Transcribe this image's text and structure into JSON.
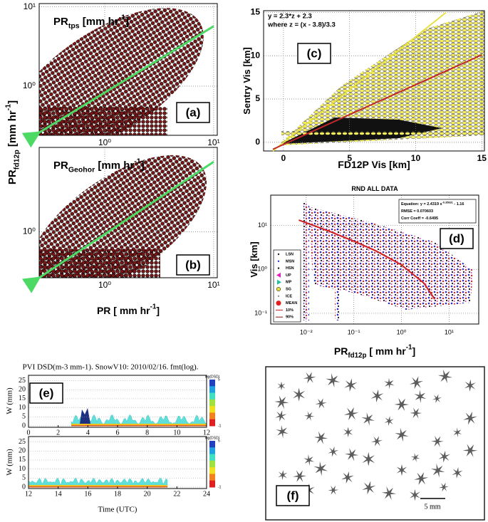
{
  "left_labels": {
    "y_label": [
      {
        "text": "PR"
      },
      {
        "text": "fd12p",
        "pos": "sub"
      },
      {
        "text": " [mm hr"
      },
      {
        "text": "-1",
        "pos": "sup"
      },
      {
        "text": "]"
      }
    ],
    "x_label": [
      {
        "text": "PR [ mm hr"
      },
      {
        "text": "-1",
        "pos": "sup"
      },
      {
        "text": "]"
      }
    ]
  },
  "chart_data": [
    {
      "type": "scatter",
      "panel_label": "(a)",
      "title": [
        {
          "text": "PR"
        },
        {
          "text": "tps",
          "pos": "sub"
        },
        {
          "text": " [mm hr"
        },
        {
          "text": "-1",
          "pos": "sup"
        },
        {
          "text": "]"
        }
      ],
      "log_x": true,
      "log_y": true,
      "grid": true,
      "xlim": [
        0.25,
        10.8
      ],
      "ylim": [
        0.24,
        11
      ],
      "xticks": [
        {
          "value": 1,
          "label": "10⁰"
        },
        {
          "value": 10,
          "label": "10¹"
        }
      ],
      "yticks": [
        {
          "value": 1,
          "label": "10⁰"
        },
        {
          "value": 10,
          "label": "10¹"
        }
      ],
      "series": [
        {
          "color": "#4cd964",
          "x": [
            0.25,
            10
          ],
          "values": [
            0.26,
            5.7
          ]
        }
      ]
    },
    {
      "type": "scatter",
      "panel_label": "(b)",
      "title": [
        {
          "text": "PR"
        },
        {
          "text": "Geohor",
          "pos": "sub"
        },
        {
          "text": " [mm hr"
        },
        {
          "text": "-1",
          "pos": "sup"
        },
        {
          "text": "]"
        }
      ],
      "log_x": true,
      "log_y": true,
      "grid": true,
      "xlim": [
        0.25,
        10.8
      ],
      "ylim": [
        0.27,
        11
      ],
      "xticks": [
        {
          "value": 1,
          "label": "10⁰"
        },
        {
          "value": 10,
          "label": "10¹"
        }
      ],
      "yticks": [
        {
          "value": 1,
          "label": "10⁰"
        }
      ],
      "series": [
        {
          "color": "#4cd964",
          "x": [
            0.25,
            10
          ],
          "values": [
            0.27,
            7.3
          ]
        }
      ]
    },
    {
      "type": "scatter",
      "panel_label": "(c)",
      "x_label": [
        {
          "text": "FD12P Vis [km]"
        }
      ],
      "y_label": [
        {
          "text": "Sentry Vis [km]"
        }
      ],
      "annotations": [
        "y = 2.3*z + 2.3",
        "where z = (x - 3.8)/3.3"
      ],
      "log_x": false,
      "log_y": false,
      "grid": true,
      "xlim": [
        -1.5,
        15.2
      ],
      "ylim": [
        -1,
        15.2
      ],
      "xticks": [
        0,
        5,
        10,
        15
      ],
      "yticks": [
        0,
        5,
        10,
        15
      ],
      "series": [
        {
          "color": "#e8e040",
          "x": [
            -0.8,
            12.3
          ],
          "values": [
            -1,
            15
          ]
        },
        {
          "color": "#c0282a",
          "x": [
            -0.8,
            15
          ],
          "values": [
            -0.8,
            10.1
          ]
        }
      ]
    },
    {
      "type": "scatter",
      "panel_label": "(d)",
      "title": [
        {
          "text": "RND ALL DATA"
        }
      ],
      "x_label": [
        {
          "text": "PR"
        },
        {
          "text": "fd12p",
          "pos": "sub"
        },
        {
          "text": " [ mm hr"
        },
        {
          "text": "-1",
          "pos": "sup"
        },
        {
          "text": "]"
        }
      ],
      "y_label": [
        {
          "text": "Vis [km]"
        }
      ],
      "annotations": [
        [
          {
            "text": "Equation: y = 2.4319 x"
          },
          {
            "text": "-0.35831",
            "pos": "sup"
          },
          {
            "text": " - 1.16"
          }
        ],
        [
          {
            "text": "RMSE = 0.070603"
          }
        ],
        [
          {
            "text": "Corr Coeff = -0.6495"
          }
        ]
      ],
      "log_x": true,
      "log_y": true,
      "grid": true,
      "xlim": [
        0.0018,
        42
      ],
      "ylim": [
        0.057,
        49
      ],
      "xticks": [
        {
          "value": 0.01,
          "label": "10⁻²"
        },
        {
          "value": 0.1,
          "label": "10⁻¹"
        },
        {
          "value": 1,
          "label": "10⁰"
        },
        {
          "value": 10,
          "label": "10¹"
        }
      ],
      "yticks": [
        {
          "value": 0.1,
          "label": "10⁻¹"
        },
        {
          "value": 1,
          "label": "10⁰"
        },
        {
          "value": 10,
          "label": "10¹"
        }
      ],
      "legend": [
        {
          "name": "LSN",
          "color": "#222222",
          "marker": "dot"
        },
        {
          "name": "MSN",
          "color": "#2030d0",
          "marker": "dot"
        },
        {
          "name": "HSN",
          "color": "#101010",
          "marker": "dot"
        },
        {
          "name": "UP",
          "color": "#e020c0",
          "marker": "left"
        },
        {
          "name": "MP",
          "color": "#20c0a0",
          "marker": "right"
        },
        {
          "name": "SG",
          "color": "#e8e040",
          "marker": "circle"
        },
        {
          "name": "ICE",
          "color": "#909090",
          "marker": "dot"
        },
        {
          "name": "MEAN",
          "color": "#e02020",
          "marker": "big"
        },
        {
          "name": "10%",
          "color": "#c02020",
          "marker": "line"
        },
        {
          "name": "90%",
          "color": "#801010",
          "marker": "line"
        }
      ],
      "series": [
        {
          "color": "#d02020",
          "x": [
            0.007,
            0.01,
            0.03,
            0.1,
            0.3,
            1,
            3,
            5
          ],
          "values": [
            13.2,
            11.5,
            7.4,
            4.4,
            2.6,
            1.27,
            0.48,
            0.21
          ]
        }
      ]
    },
    {
      "type": "heatmap",
      "panel_label": "(e)",
      "title": "PVI DSD(m-3 mm-1). SnowV10: 2010/02/16. fmt(log).",
      "x_label": "Time (UTC)",
      "panels": [
        {
          "y_label": "W (mm)",
          "xlim": [
            0,
            12
          ],
          "xticks": [
            0,
            2,
            4,
            6,
            8,
            10,
            12
          ],
          "ylim": [
            -0.8,
            28
          ],
          "yticks": [
            0,
            5,
            10,
            15,
            20,
            25
          ],
          "colorbar_label": "log(DSD)",
          "colorbar_lim": [
            -1,
            5
          ],
          "colorbar_ticks": [
            5,
            -1
          ]
        },
        {
          "y_label": "W (mm)",
          "xlim": [
            12,
            24
          ],
          "xticks": [
            12,
            14,
            16,
            18,
            20,
            22,
            24
          ],
          "ylim": [
            -0.8,
            28
          ],
          "yticks": [
            0,
            5,
            10,
            15,
            20,
            25
          ],
          "colorbar_label": "log(DSD)",
          "colorbar_lim": [
            -1,
            5
          ],
          "colorbar_ticks": [
            5,
            -1
          ]
        }
      ]
    },
    {
      "type": "image",
      "panel_label": "(f)",
      "scale_label": "5 mm"
    }
  ]
}
